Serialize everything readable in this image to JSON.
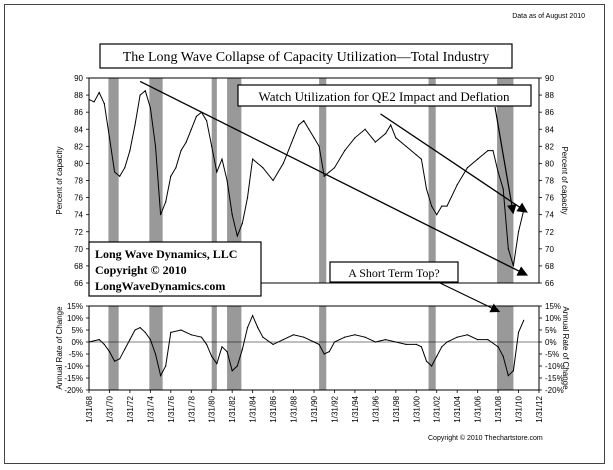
{
  "header": {
    "data_note": "Data as of August 2010",
    "title": "The Long Wave Collapse of Capacity Utilization—Total Industry",
    "copyright": "Copyright © 2010 Thechartstore.com"
  },
  "annotations": {
    "watch": "Watch Utilization for QE2 Impact and Deflation",
    "short_term_top": "A Short Term Top?",
    "brand_line1": "Long Wave Dynamics, LLC",
    "brand_line2": "Copyright © 2010",
    "brand_line3": "LongWaveDynamics.com"
  },
  "chart_data": [
    {
      "type": "line",
      "name": "Capacity Utilization",
      "ylabel": "Percent of capacity",
      "ylabel_right": "Percent of capacity",
      "ylim": [
        66,
        90
      ],
      "yticks": [
        "66",
        "68",
        "70",
        "72",
        "74",
        "76",
        "78",
        "80",
        "82",
        "84",
        "86",
        "88",
        "90"
      ],
      "x": [
        1968.0,
        1968.5,
        1969.0,
        1969.5,
        1970.0,
        1970.5,
        1971.0,
        1971.5,
        1972.0,
        1972.5,
        1973.0,
        1973.5,
        1974.0,
        1974.5,
        1975.0,
        1975.5,
        1976.0,
        1976.5,
        1977.0,
        1977.5,
        1978.0,
        1978.5,
        1979.0,
        1979.5,
        1980.0,
        1980.5,
        1981.0,
        1981.5,
        1982.0,
        1982.5,
        1983.0,
        1983.5,
        1984.0,
        1985.0,
        1986.0,
        1987.0,
        1988.0,
        1988.5,
        1989.0,
        1989.5,
        1990.0,
        1990.5,
        1991.0,
        1991.5,
        1992.0,
        1993.0,
        1994.0,
        1995.0,
        1996.0,
        1997.0,
        1997.5,
        1998.0,
        1999.0,
        2000.0,
        2000.5,
        2001.0,
        2001.5,
        2002.0,
        2002.5,
        2003.0,
        2004.0,
        2005.0,
        2006.0,
        2007.0,
        2007.5,
        2008.0,
        2008.5,
        2009.0,
        2009.5,
        2010.0,
        2010.5
      ],
      "values": [
        87.5,
        87.2,
        88.3,
        87.0,
        83.0,
        79.0,
        78.5,
        79.5,
        81.5,
        84.5,
        88.0,
        88.5,
        86.5,
        82.0,
        74.0,
        75.5,
        78.5,
        79.5,
        81.5,
        82.5,
        84.0,
        85.5,
        86.0,
        85.0,
        82.0,
        79.0,
        80.5,
        78.0,
        74.0,
        71.5,
        73.0,
        76.0,
        80.5,
        79.5,
        78.0,
        80.0,
        83.0,
        84.5,
        85.0,
        84.0,
        83.0,
        82.0,
        78.5,
        79.0,
        79.5,
        81.5,
        83.0,
        84.0,
        82.5,
        83.5,
        84.5,
        83.0,
        82.0,
        81.0,
        80.5,
        77.0,
        75.0,
        74.0,
        75.0,
        75.0,
        77.5,
        79.5,
        80.5,
        81.5,
        81.5,
        79.0,
        77.0,
        70.0,
        68.0,
        72.0,
        74.5
      ]
    },
    {
      "type": "line",
      "name": "Annual Rate of Change",
      "ylabel": "Annual Rate of Change",
      "ylabel_right": "Annual Rate of Change",
      "ylim": [
        -20,
        15
      ],
      "yticks": [
        "-20%",
        "-15%",
        "-10%",
        "-5%",
        "0%",
        "5%",
        "10%",
        "15%"
      ],
      "x": [
        1968.0,
        1969.0,
        1969.5,
        1970.0,
        1970.5,
        1971.0,
        1971.5,
        1972.0,
        1972.5,
        1973.0,
        1973.5,
        1974.0,
        1974.5,
        1975.0,
        1975.5,
        1976.0,
        1977.0,
        1978.0,
        1979.0,
        1979.5,
        1980.0,
        1980.5,
        1981.0,
        1981.5,
        1982.0,
        1982.5,
        1983.0,
        1983.5,
        1984.0,
        1984.5,
        1985.0,
        1986.0,
        1987.0,
        1988.0,
        1989.0,
        1990.0,
        1990.5,
        1991.0,
        1991.5,
        1992.0,
        1993.0,
        1994.0,
        1995.0,
        1996.0,
        1997.0,
        1998.0,
        1999.0,
        2000.0,
        2000.5,
        2001.0,
        2001.5,
        2002.0,
        2002.5,
        2003.0,
        2004.0,
        2005.0,
        2006.0,
        2007.0,
        2008.0,
        2008.5,
        2009.0,
        2009.5,
        2010.0,
        2010.5
      ],
      "values": [
        0.0,
        1.0,
        -1.0,
        -4.0,
        -8.0,
        -7.0,
        -3.0,
        1.0,
        5.0,
        6.0,
        4.0,
        1.0,
        -5.0,
        -14.0,
        -10.0,
        4.0,
        5.0,
        3.0,
        2.0,
        -1.0,
        -6.0,
        -9.0,
        -2.0,
        -4.0,
        -12.0,
        -10.0,
        -3.0,
        6.0,
        11.0,
        6.0,
        2.0,
        -1.0,
        1.0,
        3.0,
        2.0,
        0.0,
        -1.0,
        -5.0,
        -4.0,
        0.0,
        2.0,
        3.0,
        2.0,
        0.0,
        1.0,
        0.0,
        -1.0,
        -1.0,
        -2.0,
        -8.0,
        -10.0,
        -6.0,
        -2.0,
        0.0,
        2.0,
        3.0,
        1.0,
        1.0,
        -2.0,
        -6.0,
        -14.0,
        -12.0,
        4.0,
        9.0
      ]
    },
    {
      "type": "shading",
      "name": "Recessions",
      "x_tick_labels": [
        "1/31/68",
        "1/31/70",
        "1/31/72",
        "1/31/74",
        "1/31/76",
        "1/31/78",
        "1/31/80",
        "1/31/82",
        "1/31/84",
        "1/31/86",
        "1/31/88",
        "1/31/90",
        "1/31/92",
        "1/31/94",
        "1/31/96",
        "1/31/98",
        "1/31/00",
        "1/31/02",
        "1/31/04",
        "1/31/06",
        "1/31/08",
        "1/31/10",
        "1/31/12"
      ],
      "xlim": [
        1968.0,
        2012.0
      ],
      "recessions": [
        [
          1969.9,
          1970.9
        ],
        [
          1973.9,
          1975.2
        ],
        [
          1980.0,
          1980.5
        ],
        [
          1981.5,
          1982.9
        ],
        [
          1990.5,
          1991.2
        ],
        [
          2001.2,
          2001.9
        ],
        [
          2007.9,
          2009.5
        ]
      ],
      "trendlines": [
        {
          "name": "long-wave",
          "from": [
            1973.0,
            89.6
          ],
          "to": [
            2010.7,
            67.0
          ]
        },
        {
          "name": "recent",
          "from": [
            1996.5,
            85.8
          ],
          "to": [
            2010.7,
            74.4
          ]
        }
      ]
    }
  ]
}
